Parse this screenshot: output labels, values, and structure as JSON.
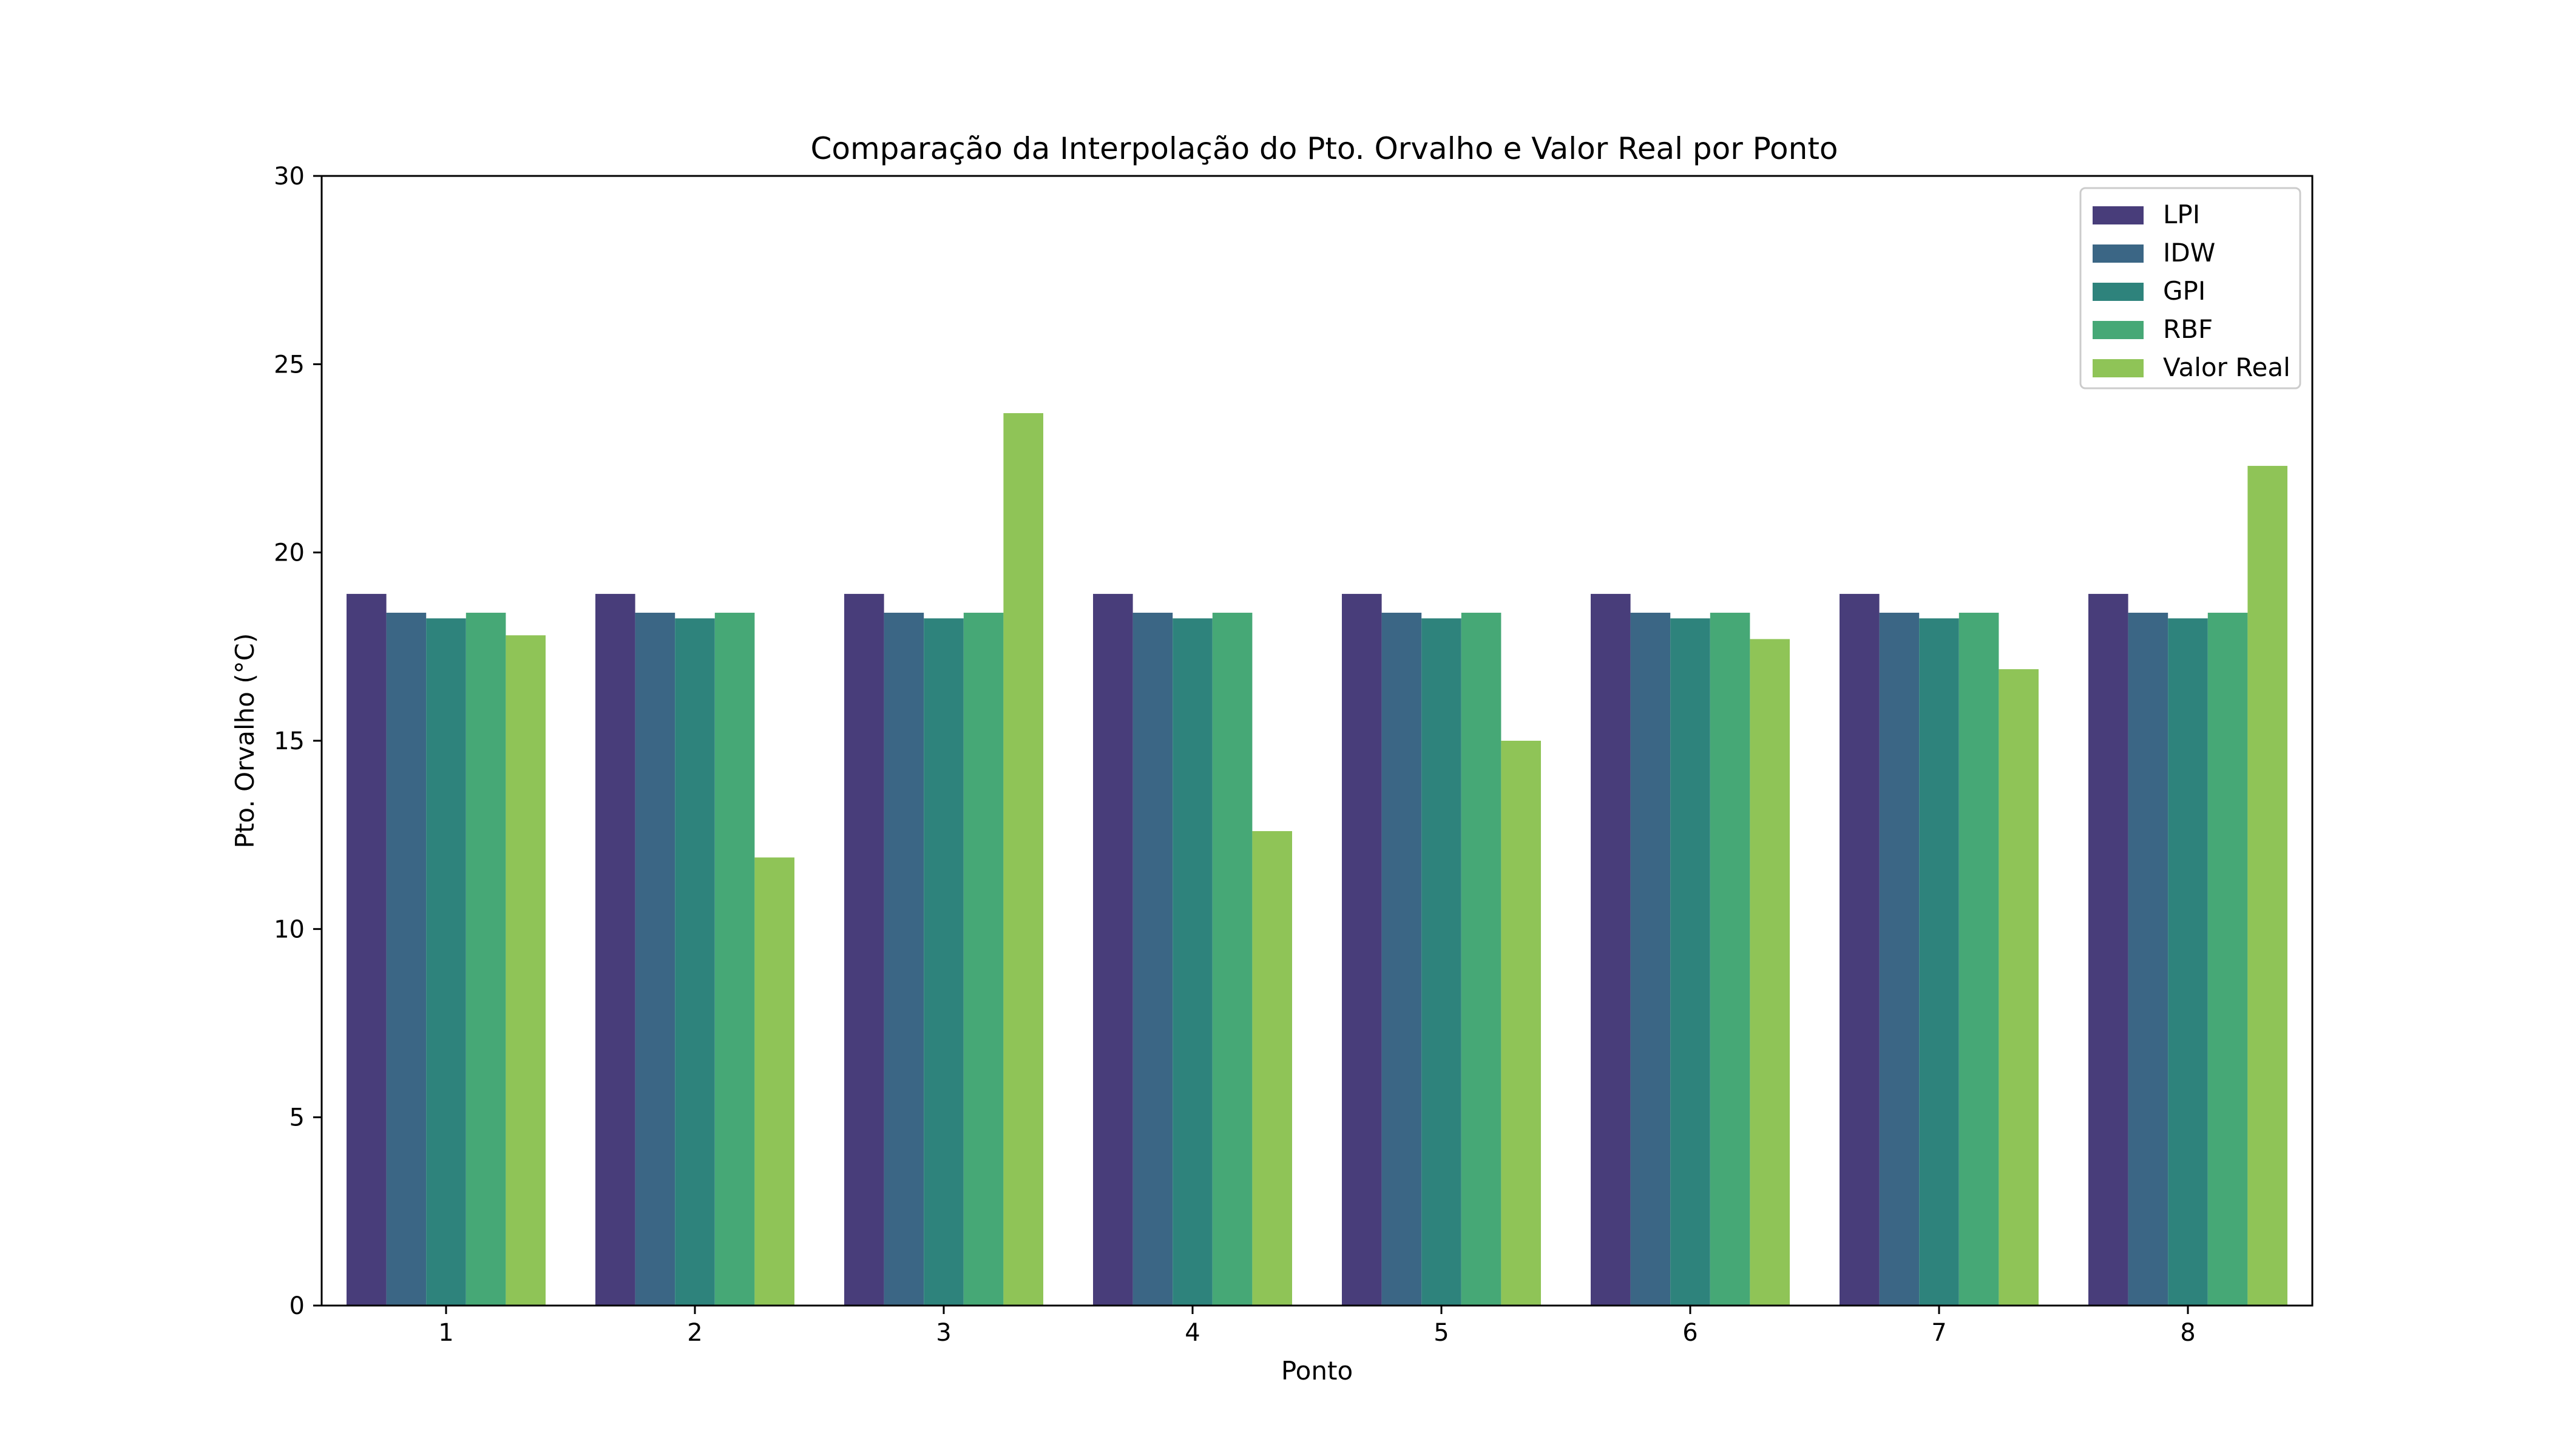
{
  "chart_data": {
    "type": "bar",
    "title": "Comparação da Interpolação do Pto. Orvalho e Valor Real por Ponto",
    "xlabel": "Ponto",
    "ylabel": "Pto. Orvalho (°C)",
    "categories": [
      "1",
      "2",
      "3",
      "4",
      "5",
      "6",
      "7",
      "8"
    ],
    "ylim": [
      0,
      30
    ],
    "yticks": [
      "0",
      "5",
      "10",
      "15",
      "20",
      "25",
      "30"
    ],
    "grid": false,
    "legend_position": "top-right",
    "series": [
      {
        "name": "LPI",
        "color": "#483d7a",
        "values": [
          18.9,
          18.9,
          18.9,
          18.9,
          18.9,
          18.9,
          18.9,
          18.9
        ]
      },
      {
        "name": "IDW",
        "color": "#3b6685",
        "values": [
          18.4,
          18.4,
          18.4,
          18.4,
          18.4,
          18.4,
          18.4,
          18.4
        ]
      },
      {
        "name": "GPI",
        "color": "#2e837c",
        "values": [
          18.25,
          18.25,
          18.25,
          18.25,
          18.25,
          18.25,
          18.25,
          18.25
        ]
      },
      {
        "name": "RBF",
        "color": "#46a876",
        "values": [
          18.4,
          18.4,
          18.4,
          18.4,
          18.4,
          18.4,
          18.4,
          18.4
        ]
      },
      {
        "name": "Valor Real",
        "color": "#8fc457",
        "values": [
          17.8,
          11.9,
          23.7,
          12.6,
          15.0,
          17.7,
          16.9,
          22.3
        ]
      }
    ]
  }
}
